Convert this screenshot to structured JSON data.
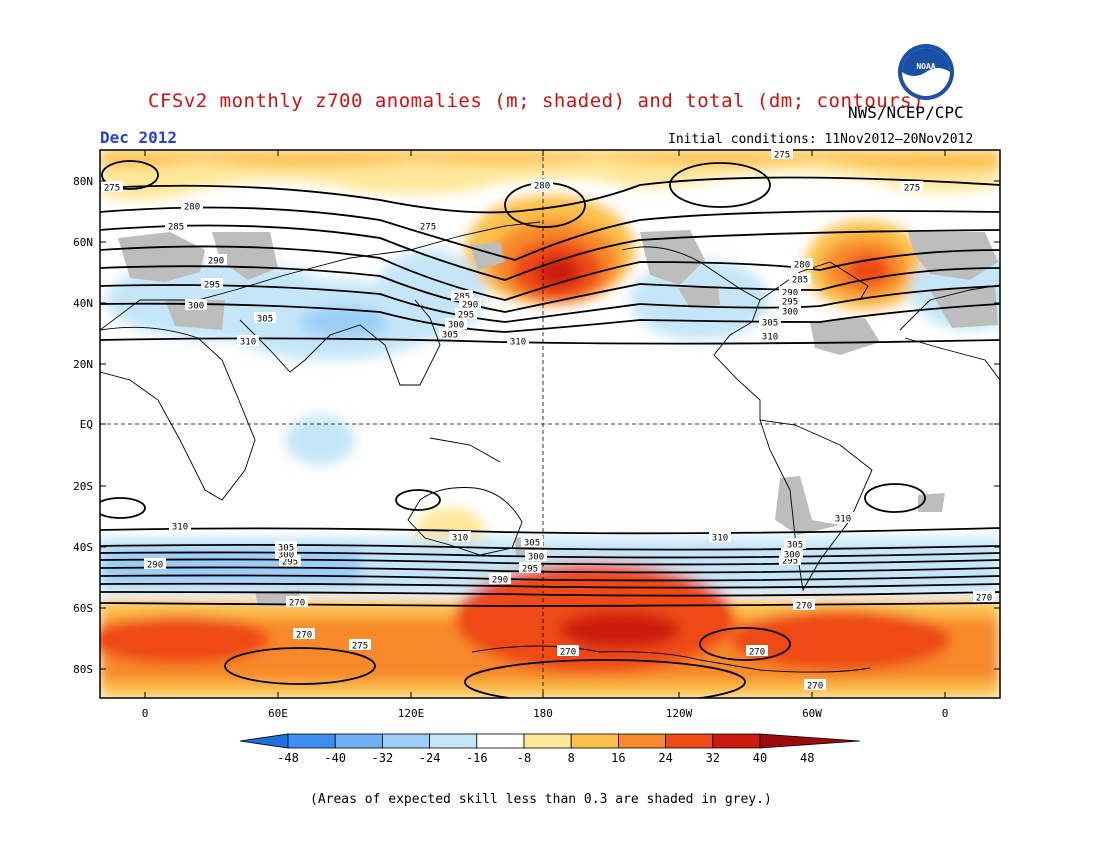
{
  "header": {
    "title": "CFSv2 monthly z700 anomalies (m; shaded) and total (dm; contours)",
    "agency": "NWS/NCEP/CPC",
    "period": "Dec 2012",
    "initial_conditions": "Initial conditions: 11Nov2012–20Nov2012",
    "logo_text": "NOAA"
  },
  "map": {
    "lat_labels": [
      "80N",
      "60N",
      "40N",
      "20N",
      "EQ",
      "20S",
      "40S",
      "60S",
      "80S"
    ],
    "lon_labels": [
      "0",
      "60E",
      "120E",
      "180",
      "120W",
      "60W",
      "0"
    ],
    "contour_labels": [
      "275",
      "280",
      "285",
      "290",
      "295",
      "300",
      "305",
      "310",
      "270"
    ],
    "skill_mask_color": "#bdbdbd"
  },
  "colorbar": {
    "ticks": [
      "-48",
      "-40",
      "-32",
      "-24",
      "-16",
      "-8",
      "8",
      "16",
      "24",
      "32",
      "40",
      "48"
    ],
    "colors": [
      "#1e6fe0",
      "#3d8ff0",
      "#6fb0f5",
      "#9ccdf8",
      "#c4e6f8",
      "#ffffff",
      "#ffe79a",
      "#fcc04c",
      "#f8892a",
      "#ee4a18",
      "#cc1a0e",
      "#9b0b0b"
    ]
  },
  "footnote": "(Areas of expected skill less than 0.3 are shaded in grey.)"
}
